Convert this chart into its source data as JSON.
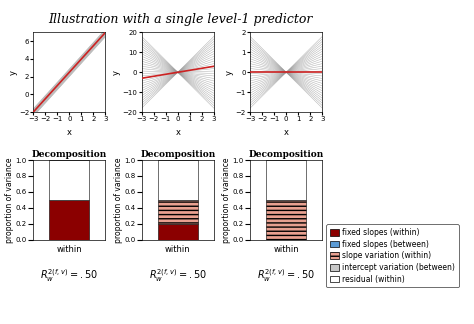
{
  "title": "Illustration with a single level-1 predictor",
  "title_fontsize": 9,
  "panel_titles": [
    "Decomposition",
    "Decomposition",
    "Decomposition"
  ],
  "xlabel": "x",
  "ylabel_line": "y",
  "ylabel_bar": "proportion of variance",
  "bar_xlabel": "within",
  "r2_labels": [
    "$R_w^{2(f,v)} = .50$",
    "$R_w^{2(f,v)} = .50$",
    "$R_w^{2(f,v)} = .50$"
  ],
  "xlim_line": [
    -3,
    3
  ],
  "ylim_line1": [
    -2,
    7
  ],
  "ylim_line2": [
    -20,
    20
  ],
  "ylim_line3": [
    -2,
    2
  ],
  "yticks_line1": [
    -2,
    0,
    2,
    4,
    6
  ],
  "yticks_line2": [
    -20,
    -10,
    0,
    10,
    20
  ],
  "yticks_line3": [
    -2,
    -1,
    0,
    1,
    2
  ],
  "xticks_line": [
    -3,
    -2,
    -1,
    0,
    1,
    2,
    3
  ],
  "ylim_bar": [
    0,
    1.0
  ],
  "yticks_bar": [
    0.0,
    0.2,
    0.4,
    0.6,
    0.8,
    1.0
  ],
  "fixed_slope_color": "#8B0000",
  "slope_var_color": "#E8A090",
  "intercept_var_color": "#C8C8C8",
  "residual_color": "#FFFFFF",
  "fixed_between_color": "#5B9BD5",
  "line_gray": "#999999",
  "fixed_line_color": "#CC2222",
  "bar1_segments": [
    {
      "value": 0.5,
      "color": "#8B0000",
      "hatch": null
    },
    {
      "value": 0.5,
      "color": "#FFFFFF",
      "hatch": null
    }
  ],
  "bar2_segments": [
    {
      "value": 0.2,
      "color": "#8B0000",
      "hatch": null
    },
    {
      "value": 0.3,
      "color": "#E8A090",
      "hatch": "----"
    },
    {
      "value": 0.5,
      "color": "#FFFFFF",
      "hatch": null
    }
  ],
  "bar3_segments": [
    {
      "value": 0.5,
      "color": "#E8A090",
      "hatch": "----"
    },
    {
      "value": 0.5,
      "color": "#FFFFFF",
      "hatch": null
    }
  ],
  "n_gray_lines_p1": 8,
  "n_gray_lines_p2": 30,
  "n_gray_lines_p3": 30,
  "legend_labels": [
    "fixed slopes (within)",
    "fixed slopes (between)",
    "slope variation (within)",
    "intercept variation (between)",
    "residual (within)"
  ],
  "legend_colors": [
    "#8B0000",
    "#5B9BD5",
    "#E8A090",
    "#C8C8C8",
    "#FFFFFF"
  ],
  "legend_hatches": [
    null,
    null,
    "----",
    null,
    null
  ],
  "bg_color": "#F0F0F0"
}
